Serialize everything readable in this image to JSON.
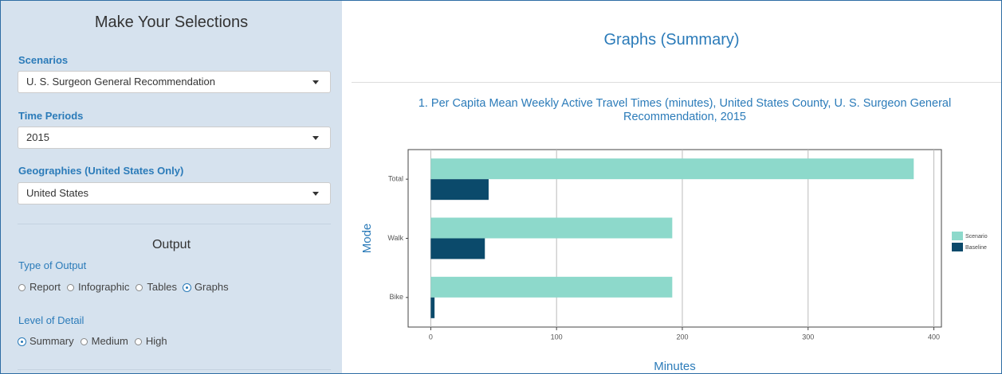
{
  "sidebar": {
    "title": "Make Your Selections",
    "scenarios": {
      "label": "Scenarios",
      "value": "U. S. Surgeon General Recommendation"
    },
    "time_periods": {
      "label": "Time Periods",
      "value": "2015"
    },
    "geographies": {
      "label": "Geographies (United States Only)",
      "value": "United States"
    },
    "output": {
      "title": "Output",
      "type_label": "Type of Output",
      "type_options": [
        "Report",
        "Infographic",
        "Tables",
        "Graphs"
      ],
      "type_selected": 3,
      "detail_label": "Level of Detail",
      "detail_options": [
        "Summary",
        "Medium",
        "High"
      ],
      "detail_selected": 0
    }
  },
  "main": {
    "title": "Graphs (Summary)"
  },
  "chart_data": {
    "type": "bar",
    "orientation": "horizontal",
    "title": "1. Per Capita Mean Weekly Active Travel Times (minutes), United States County, U. S. Surgeon General Recommendation, 2015",
    "x_label": "Minutes",
    "y_label": "Mode",
    "categories": [
      "Total",
      "Walk",
      "Bike"
    ],
    "series": [
      {
        "name": "Scenario",
        "color": "#8dd9cb",
        "values": [
          384,
          192,
          192
        ]
      },
      {
        "name": "Baseline",
        "color": "#0b4a6b",
        "values": [
          46,
          43,
          3
        ]
      }
    ],
    "xlim": [
      -18,
      406
    ],
    "xticks": [
      0,
      100,
      200,
      300,
      400
    ],
    "grid": true,
    "legend": "right"
  }
}
